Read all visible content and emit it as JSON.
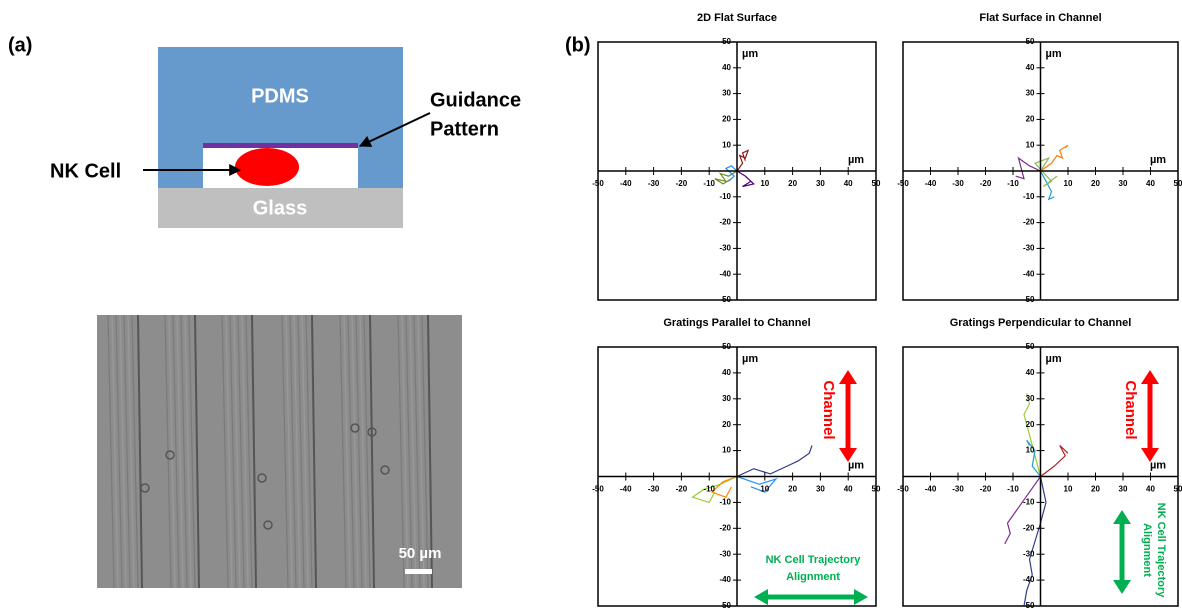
{
  "panel_a": {
    "label": "(a)",
    "diagram": {
      "top": "PDMS",
      "bottom": "Glass",
      "pattern": [
        "Guidance",
        "Pattern"
      ],
      "cell": "NK Cell"
    },
    "micrograph": {
      "scale_bar": "50 µm"
    }
  },
  "panel_b": {
    "label": "(b)"
  },
  "chart_data": [
    {
      "type": "line",
      "title": "2D Flat Surface",
      "xlabel": "µm",
      "ylabel": "µm",
      "xlim": [
        -50,
        50
      ],
      "ylim": [
        -50,
        50
      ],
      "xticks": [
        -50,
        -40,
        -30,
        -20,
        -10,
        10,
        20,
        30,
        40,
        50
      ],
      "yticks": [
        -50,
        -40,
        -30,
        -20,
        -10,
        10,
        20,
        30,
        40,
        50
      ],
      "series": [
        {
          "color": "#8b1a1a",
          "x": [
            0,
            2,
            1,
            3,
            4,
            2,
            3
          ],
          "values": [
            0,
            3,
            6,
            5,
            8,
            7,
            4
          ]
        },
        {
          "color": "#6b8e23",
          "x": [
            0,
            -3,
            -6,
            -4,
            -8,
            -5,
            -2
          ],
          "values": [
            0,
            -2,
            -1,
            -4,
            -3,
            -5,
            -3
          ]
        },
        {
          "color": "#4b0082",
          "x": [
            0,
            3,
            5,
            2,
            6,
            4
          ],
          "values": [
            0,
            -2,
            -4,
            -6,
            -5,
            -3
          ]
        },
        {
          "color": "#1e90ff",
          "x": [
            0,
            -2,
            -4,
            -1,
            -3
          ],
          "values": [
            0,
            2,
            1,
            -2,
            -4
          ]
        }
      ]
    },
    {
      "type": "line",
      "title": "Flat Surface in Channel",
      "xlabel": "µm",
      "ylabel": "µm",
      "xlim": [
        -50,
        50
      ],
      "ylim": [
        -50,
        50
      ],
      "xticks": [
        -50,
        -40,
        -30,
        -20,
        -10,
        10,
        20,
        30,
        40,
        50
      ],
      "yticks": [
        -50,
        -40,
        -30,
        -20,
        -10,
        10,
        20,
        30,
        40,
        50
      ],
      "series": [
        {
          "color": "#ff7f0e",
          "x": [
            0,
            4,
            6,
            8,
            7,
            10,
            9
          ],
          "values": [
            0,
            3,
            6,
            5,
            8,
            10,
            9
          ]
        },
        {
          "color": "#1f9fd0",
          "x": [
            0,
            2,
            4,
            3,
            5
          ],
          "values": [
            0,
            -4,
            -8,
            -11,
            -10
          ]
        },
        {
          "color": "#7b2d8e",
          "x": [
            0,
            -4,
            -8,
            -6,
            -9
          ],
          "values": [
            0,
            2,
            5,
            -3,
            -2
          ]
        },
        {
          "color": "#8fbc4f",
          "x": [
            0,
            3,
            -2,
            4,
            1,
            6
          ],
          "values": [
            0,
            5,
            3,
            -4,
            -6,
            -2
          ]
        }
      ]
    },
    {
      "type": "line",
      "title": "Gratings Parallel to Channel",
      "xlabel": "µm",
      "ylabel": "µm",
      "xlim": [
        -50,
        50
      ],
      "ylim": [
        -50,
        50
      ],
      "xticks": [
        -50,
        -40,
        -30,
        -20,
        -10,
        10,
        20,
        30,
        40,
        50
      ],
      "yticks": [
        -50,
        -40,
        -30,
        -20,
        -10,
        10,
        20,
        30,
        40,
        50
      ],
      "annotations": {
        "channel": "Channel",
        "alignment": [
          "NK Cell Trajectory",
          "Alignment"
        ]
      },
      "series": [
        {
          "color": "#2f3a8f",
          "x": [
            0,
            6,
            12,
            18,
            22,
            26,
            27
          ],
          "values": [
            0,
            3,
            1,
            4,
            6,
            9,
            12
          ]
        },
        {
          "color": "#9acd32",
          "x": [
            0,
            -6,
            -12,
            -16,
            -10,
            -8
          ],
          "values": [
            0,
            -3,
            -5,
            -8,
            -10,
            -6
          ]
        },
        {
          "color": "#ff8c00",
          "x": [
            0,
            -5,
            -9,
            -4,
            -2
          ],
          "values": [
            0,
            -2,
            -6,
            -8,
            -4
          ]
        },
        {
          "color": "#1e90ff",
          "x": [
            0,
            8,
            14,
            10,
            5
          ],
          "values": [
            0,
            -3,
            -1,
            -6,
            -4
          ]
        }
      ]
    },
    {
      "type": "line",
      "title": "Gratings Perpendicular to Channel",
      "xlabel": "µm",
      "ylabel": "µm",
      "xlim": [
        -50,
        50
      ],
      "ylim": [
        -50,
        50
      ],
      "xticks": [
        -50,
        -40,
        -30,
        -20,
        -10,
        10,
        20,
        30,
        40,
        50
      ],
      "yticks": [
        -50,
        -40,
        -30,
        -20,
        -10,
        10,
        20,
        30,
        40,
        50
      ],
      "annotations": {
        "channel": "Channel",
        "alignment": [
          "NK Cell Trajectory",
          "Alignment"
        ]
      },
      "series": [
        {
          "color": "#2f3a8f",
          "x": [
            0,
            2,
            0,
            -2,
            -4,
            -3,
            -5,
            -6
          ],
          "values": [
            0,
            -10,
            -18,
            -25,
            -32,
            -38,
            -44,
            -50
          ]
        },
        {
          "color": "#9acd32",
          "x": [
            0,
            -2,
            -4,
            -6,
            -4,
            -5
          ],
          "values": [
            0,
            8,
            16,
            24,
            28,
            32
          ]
        },
        {
          "color": "#7b2d8e",
          "x": [
            0,
            -4,
            -8,
            -12,
            -11,
            -13
          ],
          "values": [
            0,
            -6,
            -12,
            -18,
            -22,
            -26
          ]
        },
        {
          "color": "#1fa0c8",
          "x": [
            0,
            -3,
            -2,
            -5,
            -4
          ],
          "values": [
            0,
            4,
            10,
            14,
            12
          ]
        },
        {
          "color": "#b22222",
          "x": [
            0,
            5,
            9,
            7,
            10
          ],
          "values": [
            0,
            4,
            8,
            12,
            9
          ]
        }
      ]
    }
  ]
}
